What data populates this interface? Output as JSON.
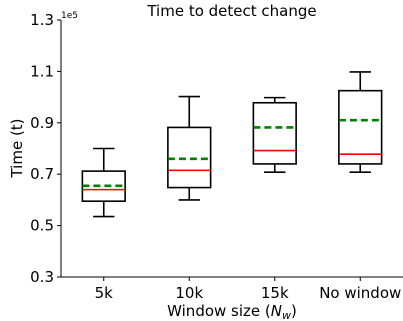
{
  "chart_data": {
    "type": "box",
    "title": "Time to detect change",
    "xlabel_text": "Window size (",
    "xlabel_symbol": "N",
    "xlabel_subscript": "w",
    "xlabel_close": ")",
    "ylabel": "Time (t)",
    "y_offset_label": "1e5",
    "y_scale": 100000,
    "ylim": [
      0.3,
      1.3
    ],
    "yticks": [
      "0.3",
      "0.5",
      "0.7",
      "0.9",
      "1.1",
      "1.3"
    ],
    "categories": [
      "5k",
      "10k",
      "15k",
      "No window"
    ],
    "boxes": [
      {
        "whislo": 0.535,
        "q1": 0.595,
        "median": 0.64,
        "mean": 0.655,
        "q3": 0.712,
        "whishi": 0.8
      },
      {
        "whislo": 0.6,
        "q1": 0.648,
        "median": 0.715,
        "mean": 0.76,
        "q3": 0.882,
        "whishi": 1.002
      },
      {
        "whislo": 0.708,
        "q1": 0.74,
        "median": 0.792,
        "mean": 0.882,
        "q3": 0.978,
        "whishi": 0.998
      },
      {
        "whislo": 0.708,
        "q1": 0.74,
        "median": 0.778,
        "mean": 0.91,
        "q3": 1.025,
        "whishi": 1.098
      }
    ],
    "colors": {
      "box": "#000000",
      "median": "#ff0000",
      "mean": "#008000"
    },
    "grid": false,
    "legend": "none"
  }
}
